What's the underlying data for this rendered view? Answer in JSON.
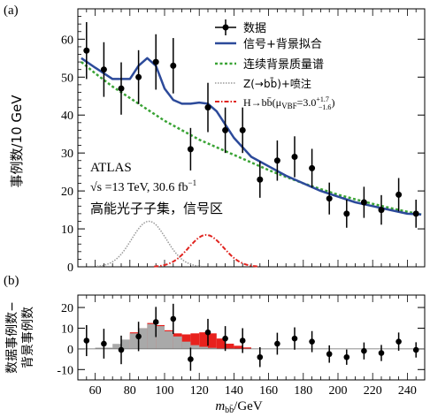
{
  "chart_data": [
    {
      "panel_label": "(a)",
      "type": "scatter",
      "ylabel": "事例数/10 GeV",
      "xlim": [
        50,
        250
      ],
      "ylim": [
        0,
        68
      ],
      "yticks": [
        0,
        10,
        20,
        30,
        40,
        50,
        60
      ],
      "legend_position": "top-right",
      "legend": {
        "data": "数据",
        "fit": "信号+背景拟合",
        "continuum": "连续背景质量谱",
        "z": "Z(→bb̄)+喷注",
        "h_prefix": "H→bb̄(μ",
        "h_sub": "VBF",
        "h_value": "=3.0",
        "h_err_up": "+1.7",
        "h_err_down": "−1.6",
        "h_suffix": ")"
      },
      "annotations": {
        "experiment": "ATLAS",
        "energy_root": "√s",
        "energy_rest": " =13 TeV, 30.6 fb",
        "lumi_exp": "−1",
        "selection": "高能光子子集，信号区"
      },
      "series": [
        {
          "name": "数据",
          "x": [
            55,
            65,
            75,
            85,
            95,
            105,
            115,
            125,
            135,
            145,
            155,
            165,
            175,
            185,
            195,
            205,
            215,
            225,
            235,
            245
          ],
          "y": [
            57,
            52,
            47,
            50,
            54,
            53,
            31,
            42,
            36,
            36,
            23,
            28,
            29,
            26,
            18,
            14,
            17,
            15,
            19,
            14
          ],
          "err": [
            7.5,
            7.2,
            6.9,
            7.1,
            7.3,
            7.3,
            5.6,
            6.5,
            6.0,
            6.0,
            4.8,
            5.3,
            5.4,
            5.1,
            4.2,
            3.7,
            4.1,
            3.9,
            4.4,
            3.7
          ]
        },
        {
          "name": "信号+背景拟合",
          "x": [
            52,
            60,
            70,
            80,
            85,
            90,
            95,
            100,
            105,
            110,
            115,
            120,
            125,
            130,
            140,
            150,
            160,
            170,
            180,
            190,
            200,
            210,
            220,
            230,
            240,
            248
          ],
          "y": [
            55,
            52.5,
            49.5,
            49.5,
            53,
            55,
            53,
            47,
            44,
            43,
            43,
            43.3,
            43,
            41,
            34,
            29,
            26.5,
            24,
            22,
            20,
            18.5,
            17,
            16,
            15,
            14,
            13.8
          ]
        },
        {
          "name": "连续背景质量谱",
          "x": [
            52,
            60,
            70,
            80,
            90,
            100,
            110,
            120,
            130,
            140,
            150,
            160,
            170,
            180,
            190,
            200,
            210,
            220,
            230,
            240,
            248
          ],
          "y": [
            54,
            51,
            47.5,
            44.5,
            41.5,
            38.5,
            36,
            33.5,
            31.5,
            29.5,
            27.5,
            25.5,
            23.7,
            22,
            20.5,
            19,
            17.8,
            16.6,
            15.5,
            14.5,
            13.8
          ]
        },
        {
          "name": "Z(→bb̄)+喷注",
          "peak_x": 91,
          "peak_y": 12,
          "sigma": 10
        },
        {
          "name": "H→bb̄(μVBF=3.0)",
          "peak_x": 124,
          "peak_y": 8.4,
          "sigma": 10
        }
      ]
    },
    {
      "panel_label": "(b)",
      "type": "bar",
      "ylabel_line1": "数据事例数−",
      "ylabel_line2": "背景事例数",
      "xlabel_main": "m",
      "xlabel_sub": "bb̄",
      "xlabel_unit": "/GeV",
      "xlim": [
        50,
        250
      ],
      "ylim": [
        -15,
        26
      ],
      "yticks": [
        -10,
        0,
        10,
        20
      ],
      "xticks": [
        60,
        80,
        100,
        120,
        140,
        160,
        180,
        200,
        220,
        240
      ],
      "gray_bins": {
        "edges": [
          60,
          70,
          75,
          80,
          85,
          90,
          95,
          100,
          105,
          110,
          115,
          120,
          125,
          130,
          140
        ],
        "values": [
          0.6,
          2.4,
          4.5,
          7.5,
          10,
          12,
          11,
          8.5,
          6,
          3.5,
          1.8,
          1.0,
          0.5,
          0.2
        ]
      },
      "red_bins": {
        "edges": [
          80,
          85,
          90,
          95,
          100,
          105,
          110,
          115,
          120,
          125,
          130,
          135,
          140,
          145,
          150
        ],
        "values": [
          8,
          10,
          12.5,
          11.5,
          9,
          7.5,
          7,
          7.5,
          8,
          7.5,
          5,
          2.5,
          1.5,
          0.7
        ]
      },
      "points": {
        "x": [
          55,
          65,
          75,
          85,
          95,
          105,
          115,
          125,
          135,
          145,
          155,
          165,
          175,
          185,
          195,
          205,
          215,
          225,
          235,
          245
        ],
        "y": [
          4,
          2.5,
          -0.5,
          6,
          13,
          14.5,
          -5,
          8,
          5,
          4,
          -4,
          2.5,
          5,
          3.5,
          -2.5,
          -4,
          -1,
          -2,
          3.5,
          -0.5
        ],
        "err": [
          7.5,
          7.2,
          6.9,
          7.1,
          7.3,
          7.3,
          5.6,
          6.5,
          6.0,
          6.0,
          4.8,
          5.3,
          5.4,
          5.1,
          4.2,
          3.7,
          4.1,
          3.9,
          4.4,
          3.7
        ]
      }
    }
  ]
}
